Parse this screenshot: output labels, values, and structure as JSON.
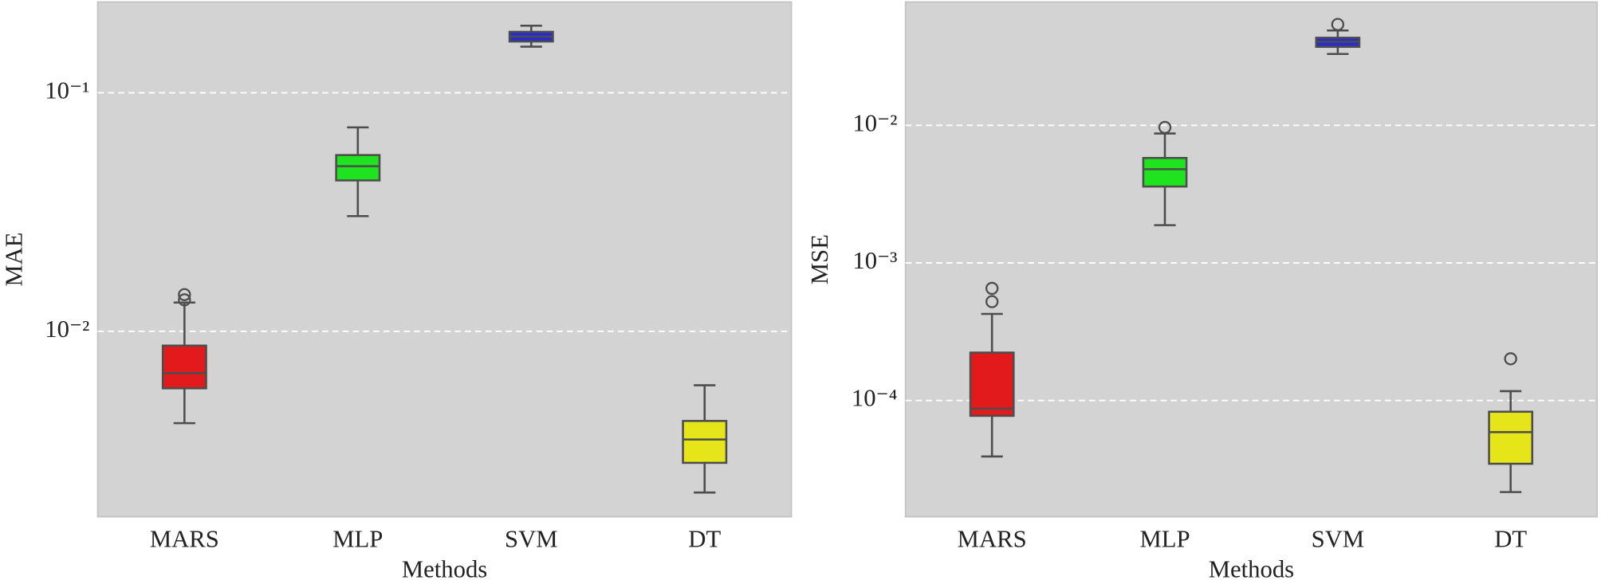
{
  "chart_data": [
    {
      "type": "box",
      "x_label": "Methods",
      "y_label": "MAE",
      "log_scale": true,
      "grid": true,
      "categories": [
        "MARS",
        "MLP",
        "SVM",
        "DT"
      ],
      "colors": [
        "#e31a1c",
        "#1ee31e",
        "#2a2ad2",
        "#e5e51a"
      ],
      "boxes": [
        {
          "whislo": 0.00412,
          "q1": 0.00577,
          "med": 0.00668,
          "q3": 0.00871,
          "whishi": 0.0132,
          "fliers": [
            0.01425,
            0.01355
          ]
        },
        {
          "whislo": 0.0304,
          "q1": 0.0429,
          "med": 0.0492,
          "q3": 0.0548,
          "whishi": 0.0716,
          "fliers": []
        },
        {
          "whislo": 0.156,
          "q1": 0.164,
          "med": 0.172,
          "q3": 0.18,
          "whishi": 0.191,
          "fliers": []
        },
        {
          "whislo": 0.00211,
          "q1": 0.00281,
          "med": 0.00352,
          "q3": 0.00421,
          "whishi": 0.00594,
          "fliers": []
        }
      ],
      "ylim": [
        0.00167,
        0.24
      ],
      "yticks": [
        {
          "value": 0.01,
          "label": "10⁻²"
        },
        {
          "value": 0.1,
          "label": "10⁻¹"
        }
      ]
    },
    {
      "type": "box",
      "x_label": "Methods",
      "y_label": "MSE",
      "log_scale": true,
      "grid": true,
      "categories": [
        "MARS",
        "MLP",
        "SVM",
        "DT"
      ],
      "colors": [
        "#e31a1c",
        "#1ee31e",
        "#2a2ad2",
        "#e5e51a"
      ],
      "boxes": [
        {
          "whislo": 3.92e-05,
          "q1": 7.74e-05,
          "med": 8.73e-05,
          "q3": 0.000223,
          "whishi": 0.000426,
          "fliers": [
            0.000653,
            0.000523
          ]
        },
        {
          "whislo": 0.00188,
          "q1": 0.00359,
          "med": 0.0048,
          "q3": 0.00579,
          "whishi": 0.00872,
          "fliers": [
            0.00966
          ]
        },
        {
          "whislo": 0.033,
          "q1": 0.0372,
          "med": 0.0405,
          "q3": 0.0433,
          "whishi": 0.0489,
          "fliers": [
            0.0541
          ]
        },
        {
          "whislo": 2.16e-05,
          "q1": 3.47e-05,
          "med": 5.89e-05,
          "q3": 8.29e-05,
          "whishi": 0.000117,
          "fliers": [
            0.000201
          ]
        }
      ],
      "ylim": [
        1.43e-05,
        0.0787
      ],
      "yticks": [
        {
          "value": 0.0001,
          "label": "10⁻⁴"
        },
        {
          "value": 0.001,
          "label": "10⁻³"
        },
        {
          "value": 0.01,
          "label": "10⁻²"
        }
      ]
    }
  ]
}
